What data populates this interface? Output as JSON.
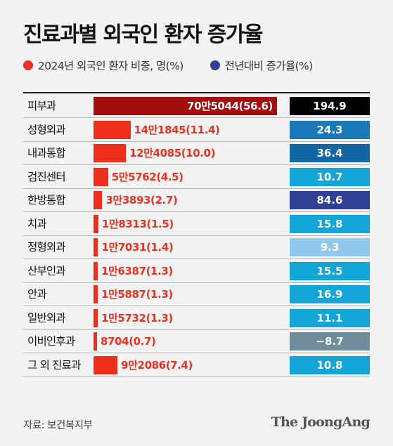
{
  "title": "진료과별 외국인 환자 증가율",
  "legend": [
    {
      "label": "2024년 외국인 환자 비중, 명(%)",
      "color": "#e63323"
    },
    {
      "label": "전년대비 증가율(%)",
      "color": "#2f3f94"
    }
  ],
  "source": "자료: 보건복지부",
  "brand": "The JoongAng",
  "chart_data": {
    "type": "bar",
    "title": "진료과별 외국인 환자 증가율",
    "categories": [
      "피부과",
      "성형외과",
      "내과통합",
      "검진센터",
      "한방통합",
      "치과",
      "정형외과",
      "산부인과",
      "안과",
      "일반외과",
      "이비인후과",
      "그 외 진료과"
    ],
    "series": [
      {
        "name": "2024년 외국인 환자 비중, 명(%)",
        "values": [
          705044,
          141845,
          124085,
          55762,
          33893,
          18313,
          17031,
          16387,
          15887,
          15732,
          8704,
          92086
        ],
        "shares": [
          56.6,
          11.4,
          10.0,
          4.5,
          2.7,
          1.5,
          1.4,
          1.3,
          1.3,
          1.3,
          0.7,
          7.4
        ],
        "labels": [
          "70만5044(56.6)",
          "14만1845(11.4)",
          "12만4085(10.0)",
          "5만5762(4.5)",
          "3만3893(2.7)",
          "1만8313(1.5)",
          "1만7031(1.4)",
          "1만6387(1.3)",
          "1만5887(1.3)",
          "1만5732(1.3)",
          "8704(0.7)",
          "9만2086(7.4)"
        ]
      },
      {
        "name": "전년대비 증가율(%)",
        "values": [
          194.9,
          24.3,
          36.4,
          10.7,
          84.6,
          15.8,
          9.3,
          15.5,
          16.9,
          11.1,
          -8.7,
          10.8
        ],
        "labels": [
          "194.9",
          "24.3",
          "36.4",
          "10.7",
          "84.6",
          "15.8",
          "9.3",
          "15.5",
          "16.9",
          "11.1",
          "−8.7",
          "10.8"
        ],
        "colors": [
          "#000000",
          "#1a7ab8",
          "#1166a6",
          "#12a6d8",
          "#2f3f94",
          "#12a6d8",
          "#8fc8ea",
          "#12a6d8",
          "#12a6d8",
          "#12a6d8",
          "#6e8c9a",
          "#12a6d8"
        ]
      }
    ],
    "first_bar_color": "#a30d0d",
    "bar_color": "#ee2d1a"
  }
}
